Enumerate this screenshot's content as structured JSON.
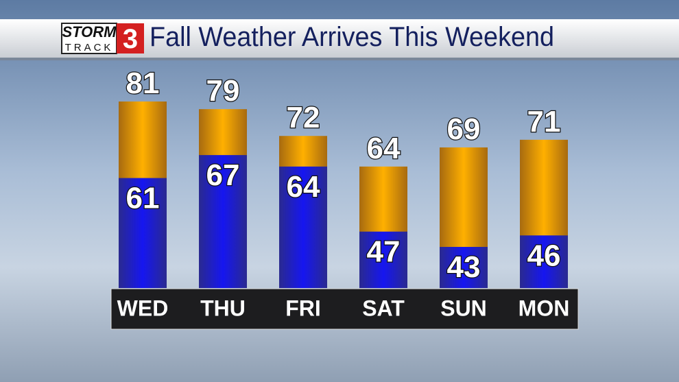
{
  "logo": {
    "top": "STORM",
    "bottom": "TRACK",
    "number": "3"
  },
  "chart_data": {
    "type": "bar",
    "title": "Fall Weather Arrives This Weekend",
    "categories": [
      "WED",
      "THU",
      "FRI",
      "SAT",
      "SUN",
      "MON"
    ],
    "series": [
      {
        "color": "#f2a20c",
        "values": [
          81,
          79,
          72,
          64,
          69,
          71
        ]
      },
      {
        "color": "#1a1adc",
        "values": [
          61,
          67,
          64,
          47,
          43,
          46
        ]
      }
    ]
  }
}
